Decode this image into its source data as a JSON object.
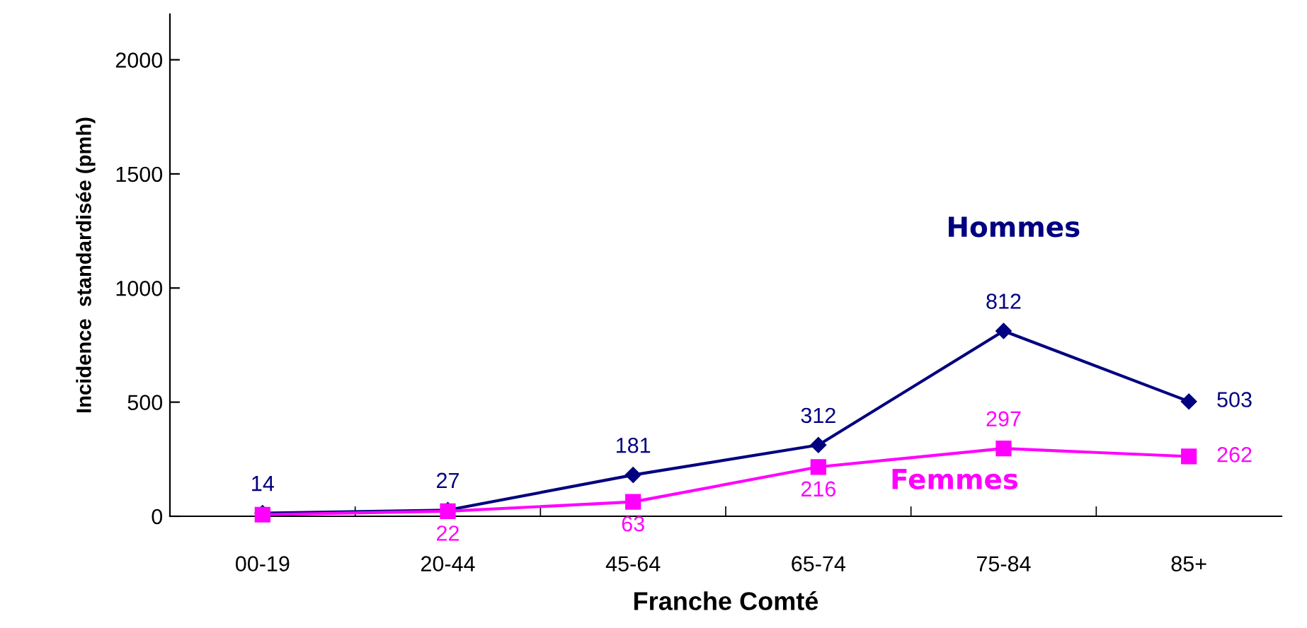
{
  "chart_data": {
    "type": "line",
    "xlabel": "Franche Comté",
    "ylabel": "Incidence  standardisée (pmh)",
    "categories": [
      "00-19",
      "20-44",
      "45-64",
      "65-74",
      "75-84",
      "85+"
    ],
    "ylim": [
      0,
      2200
    ],
    "yticks": [
      0,
      500,
      1000,
      1500,
      2000
    ],
    "grid": false,
    "legend": false,
    "series": [
      {
        "name": "Hommes",
        "color": "#000080",
        "marker": "diamond",
        "values": [
          14,
          27,
          181,
          312,
          812,
          503
        ],
        "value_labels": [
          "14",
          "27",
          "181",
          "312",
          "812",
          "503"
        ]
      },
      {
        "name": "Femmes",
        "color": "#ff00ff",
        "marker": "square",
        "values": [
          7,
          22,
          63,
          216,
          297,
          262
        ],
        "value_labels": [
          null,
          "22",
          "63",
          "216",
          "297",
          "262"
        ]
      }
    ]
  }
}
